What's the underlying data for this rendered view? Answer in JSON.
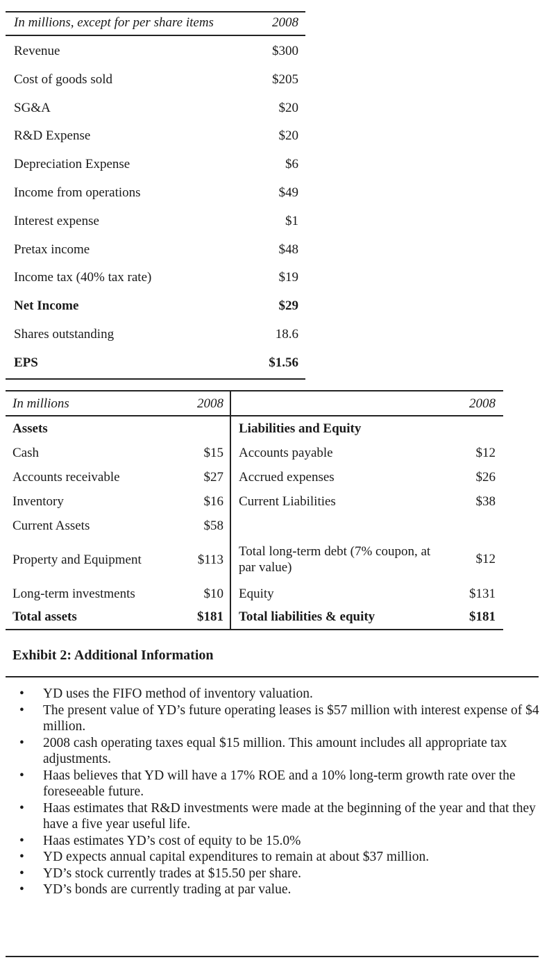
{
  "income_statement": {
    "header_label": "In millions, except for per share items",
    "header_year": "2008",
    "rows": [
      {
        "label": "Revenue",
        "value": "$300",
        "bold": false
      },
      {
        "label": "Cost of goods sold",
        "value": "$205",
        "bold": false
      },
      {
        "label": "SG&A",
        "value": "$20",
        "bold": false
      },
      {
        "label": "R&D Expense",
        "value": "$20",
        "bold": false
      },
      {
        "label": "Depreciation Expense",
        "value": "$6",
        "bold": false
      },
      {
        "label": "Income from operations",
        "value": "$49",
        "bold": false
      },
      {
        "label": "Interest expense",
        "value": "$1",
        "bold": false
      },
      {
        "label": "Pretax income",
        "value": "$48",
        "bold": false
      },
      {
        "label": "Income tax (40% tax rate)",
        "value": "$19",
        "bold": false
      },
      {
        "label": "Net Income",
        "value": "$29",
        "bold": true
      },
      {
        "label": "Shares outstanding",
        "value": "18.6",
        "bold": false
      },
      {
        "label": "EPS",
        "value": "$1.56",
        "bold": true
      }
    ]
  },
  "balance_sheet": {
    "header_label": "In millions",
    "header_year_left": "2008",
    "header_year_right": "2008",
    "assets_heading": "Assets",
    "liabilities_heading": "Liabilities and Equity",
    "assets": [
      {
        "label": "Cash",
        "value": "$15"
      },
      {
        "label": "Accounts receivable",
        "value": "$27"
      },
      {
        "label": "Inventory",
        "value": "$16"
      },
      {
        "label": "Current Assets",
        "value": "$58"
      },
      {
        "label": "Property and Equipment",
        "value": "$113"
      },
      {
        "label": "Long-term investments",
        "value": "$10"
      },
      {
        "label": "Total assets",
        "value": "$181"
      }
    ],
    "liabilities": [
      {
        "label": "Accounts payable",
        "value": "$12"
      },
      {
        "label": "Accrued expenses",
        "value": "$26"
      },
      {
        "label": "Current Liabilities",
        "value": "$38"
      },
      {
        "label": "Total long-term debt (7% coupon, at par value)",
        "value": "$12"
      },
      {
        "label": "Equity",
        "value": "$131"
      },
      {
        "label": "Total liabilities & equity",
        "value": "$181"
      }
    ]
  },
  "exhibit2": {
    "title": "Exhibit 2: Additional Information",
    "bullet_char": "•",
    "items": [
      "YD uses the FIFO method of inventory valuation.",
      "The present value of YD’s future operating leases is $57 million with interest expense of $4 million.",
      "2008 cash operating taxes equal $15 million. This amount includes all appropriate tax adjustments.",
      "Haas believes that YD will have a 17% ROE and a 10% long-term growth rate over the foreseeable future.",
      "Haas estimates that R&D investments were made at the beginning of the year and that they have a five year useful life.",
      "Haas estimates YD’s cost of equity to be 15.0%",
      "YD expects annual capital expenditures to remain at about $37 million.",
      "YD’s stock currently trades at $15.50 per share.",
      "YD’s bonds are currently trading at par value."
    ]
  }
}
